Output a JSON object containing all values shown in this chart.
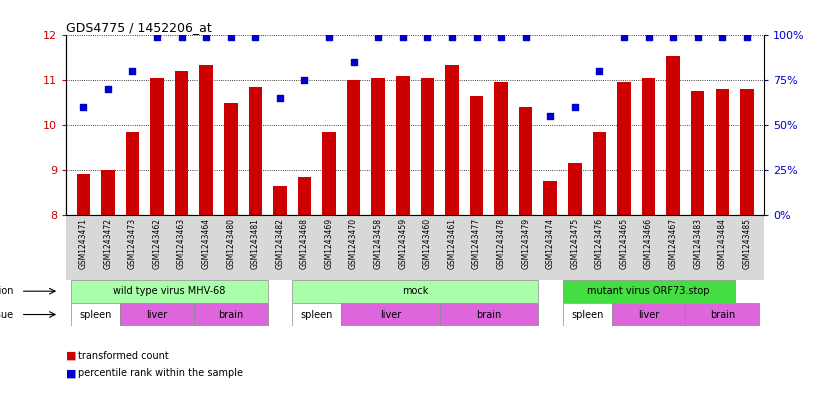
{
  "title": "GDS4775 / 1452206_at",
  "samples": [
    "GSM1243471",
    "GSM1243472",
    "GSM1243473",
    "GSM1243462",
    "GSM1243463",
    "GSM1243464",
    "GSM1243480",
    "GSM1243481",
    "GSM1243482",
    "GSM1243468",
    "GSM1243469",
    "GSM1243470",
    "GSM1243458",
    "GSM1243459",
    "GSM1243460",
    "GSM1243461",
    "GSM1243477",
    "GSM1243478",
    "GSM1243479",
    "GSM1243474",
    "GSM1243475",
    "GSM1243476",
    "GSM1243465",
    "GSM1243466",
    "GSM1243467",
    "GSM1243483",
    "GSM1243484",
    "GSM1243485"
  ],
  "transformed_count": [
    8.9,
    9.0,
    9.85,
    11.05,
    11.2,
    11.35,
    10.5,
    10.85,
    8.65,
    8.85,
    9.85,
    11.0,
    11.05,
    11.1,
    11.05,
    11.35,
    10.65,
    10.95,
    10.4,
    8.75,
    9.15,
    9.85,
    10.95,
    11.05,
    11.55,
    10.75,
    10.8,
    10.8
  ],
  "percentile_rank": [
    60,
    70,
    80,
    99,
    99,
    99,
    99,
    99,
    65,
    75,
    99,
    85,
    99,
    99,
    99,
    99,
    99,
    99,
    99,
    55,
    60,
    80,
    99,
    99,
    99,
    99,
    99,
    99
  ],
  "bar_color": "#cc0000",
  "dot_color": "#0000cc",
  "ylim_left": [
    8,
    12
  ],
  "ylim_right": [
    0,
    100
  ],
  "yticks_left": [
    8,
    9,
    10,
    11,
    12
  ],
  "yticks_right": [
    0,
    25,
    50,
    75,
    100
  ],
  "bg_color": "#ffffff",
  "plot_bg_color": "#ffffff",
  "grid_color": "#000000",
  "axis_label_color_left": "#cc0000",
  "axis_label_color_right": "#0000cc",
  "infection_groups": [
    {
      "label": "wild type virus MHV-68",
      "start": 0,
      "end": 8,
      "color": "#aaffaa"
    },
    {
      "label": "mock",
      "start": 9,
      "end": 19,
      "color": "#aaffaa"
    },
    {
      "label": "mutant virus ORF73.stop",
      "start": 20,
      "end": 27,
      "color": "#44dd44"
    }
  ],
  "tissue_groups": [
    {
      "label": "spleen",
      "start": 0,
      "end": 1,
      "color": "#ffffff"
    },
    {
      "label": "liver",
      "start": 2,
      "end": 4,
      "color": "#dd66dd"
    },
    {
      "label": "brain",
      "start": 5,
      "end": 7,
      "color": "#dd66dd"
    },
    {
      "label": "spleen",
      "start": 9,
      "end": 10,
      "color": "#ffffff"
    },
    {
      "label": "liver",
      "start": 11,
      "end": 14,
      "color": "#dd66dd"
    },
    {
      "label": "brain",
      "start": 15,
      "end": 18,
      "color": "#dd66dd"
    },
    {
      "label": "spleen",
      "start": 20,
      "end": 21,
      "color": "#ffffff"
    },
    {
      "label": "liver",
      "start": 22,
      "end": 24,
      "color": "#dd66dd"
    },
    {
      "label": "brain",
      "start": 25,
      "end": 27,
      "color": "#dd66dd"
    }
  ]
}
